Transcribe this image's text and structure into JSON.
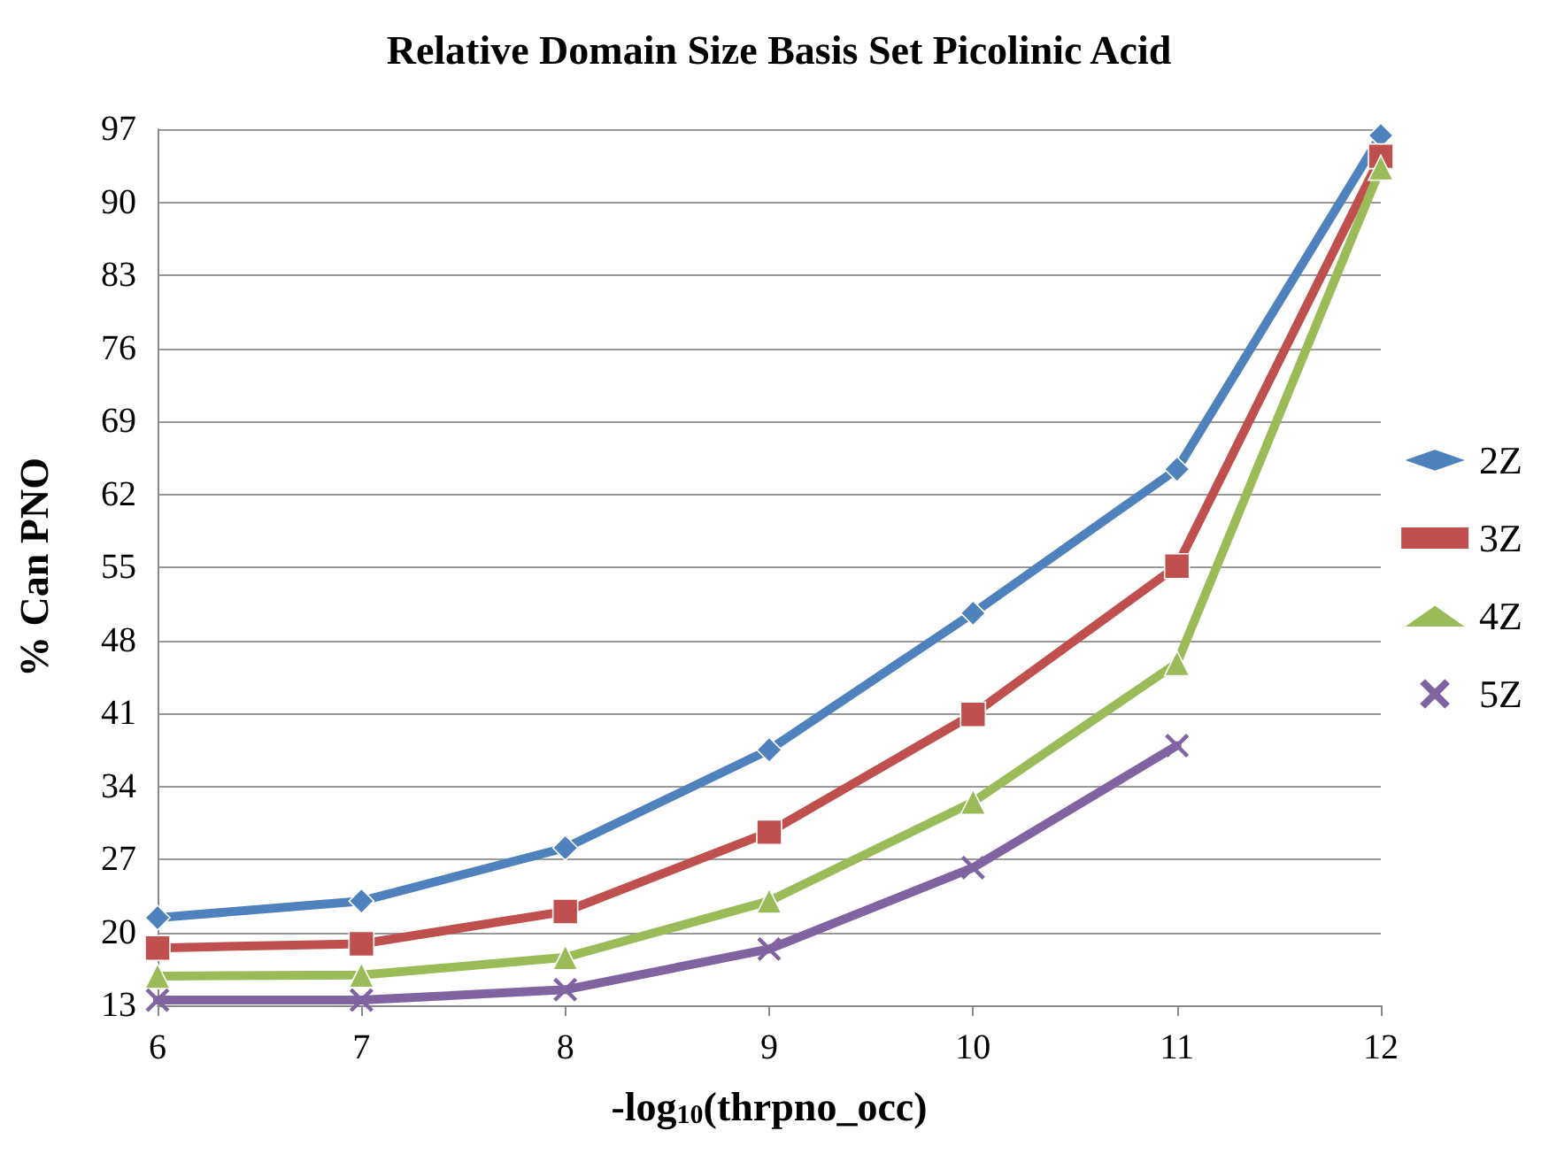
{
  "chart_data": {
    "type": "line",
    "title": "Relative Domain Size Basis Set Picolinic Acid",
    "xlabel": "-log$_{10}$(thrpno_occ)",
    "ylabel": "% Can PNO",
    "x": [
      6,
      7,
      8,
      9,
      10,
      11,
      12
    ],
    "xlim": [
      6,
      12
    ],
    "xticks": [
      6,
      7,
      8,
      9,
      10,
      11,
      12
    ],
    "ylim": [
      13,
      97
    ],
    "yticks": [
      13,
      20,
      27,
      34,
      41,
      48,
      55,
      62,
      69,
      76,
      83,
      90,
      97
    ],
    "grid": "y",
    "legend": "right",
    "series": [
      {
        "name": "2Z",
        "color": "#4f81bd",
        "marker": "diamond",
        "values": [
          21.4,
          23.0,
          28.1,
          37.5,
          50.6,
          64.4,
          96.4
        ]
      },
      {
        "name": "3Z",
        "color": "#c0504d",
        "marker": "square",
        "values": [
          18.5,
          18.9,
          22.0,
          29.6,
          40.9,
          55.1,
          94.4
        ]
      },
      {
        "name": "4Z",
        "color": "#9bbb59",
        "marker": "triangle",
        "values": [
          15.8,
          15.9,
          17.6,
          23.0,
          32.5,
          45.8,
          93.3
        ]
      },
      {
        "name": "5Z",
        "color": "#8064a2",
        "marker": "cross",
        "values": [
          13.5,
          13.5,
          14.5,
          18.4,
          26.2,
          37.9,
          null
        ]
      }
    ]
  }
}
